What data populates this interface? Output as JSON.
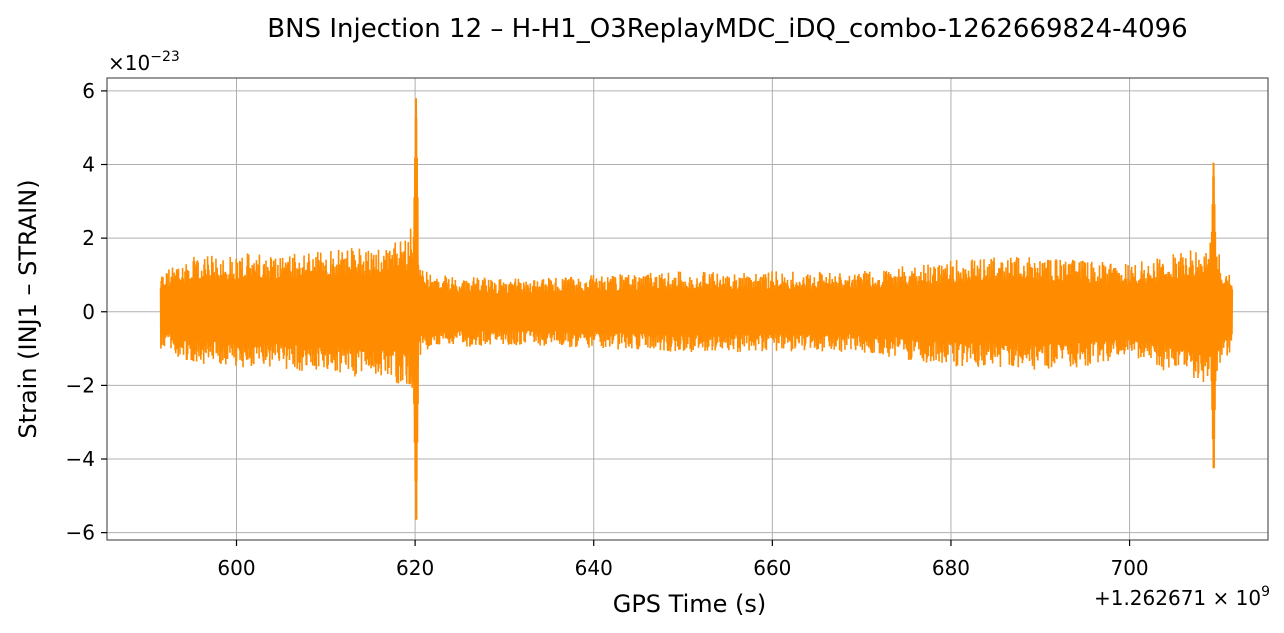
{
  "chart_data": {
    "type": "line",
    "title": "BNS Injection 12 – H-H1_O3ReplayMDC_iDQ_combo-1262669824-4096",
    "xlabel": "GPS Time (s)",
    "ylabel": "Strain (INJ1 – STRAIN)",
    "x_offset_text": "+1.262671 × 10",
    "x_offset_exp": "9",
    "y_scale_text": "×10",
    "y_scale_exp": "−23",
    "xlim": [
      585.5,
      715.5
    ],
    "ylim": [
      -6.2,
      6.35
    ],
    "x_ticks": [
      600,
      620,
      640,
      660,
      680,
      700
    ],
    "x_tick_labels": [
      "600",
      "620",
      "640",
      "660",
      "680",
      "700"
    ],
    "y_ticks": [
      -6,
      -4,
      -2,
      0,
      2,
      4,
      6
    ],
    "y_tick_labels": [
      "−6",
      "−4",
      "−2",
      "0",
      "2",
      "4",
      "6"
    ],
    "grid": true,
    "series": [
      {
        "color": "#ff8c00",
        "x_range": [
          591.5,
          711.5
        ],
        "envelope": {
          "x": [
            591.5,
            595,
            600,
            605,
            610,
            615,
            619,
            620,
            620.5,
            622,
            630,
            640,
            650,
            660,
            670,
            680,
            685,
            690,
            695,
            700,
            705,
            708,
            709.5,
            710.5,
            711.5
          ],
          "upper": [
            1.1,
            1.5,
            1.6,
            1.6,
            1.7,
            1.8,
            2.0,
            2.8,
            1.3,
            1.0,
            0.9,
            1.0,
            1.1,
            1.1,
            1.1,
            1.4,
            1.5,
            1.5,
            1.4,
            1.3,
            1.6,
            1.8,
            2.0,
            1.3,
            1.1
          ],
          "lower": [
            -1.0,
            -1.4,
            -1.5,
            -1.6,
            -1.7,
            -1.8,
            -2.0,
            -2.6,
            -1.2,
            -1.0,
            -0.9,
            -1.0,
            -1.1,
            -1.1,
            -1.1,
            -1.5,
            -1.5,
            -1.6,
            -1.5,
            -1.3,
            -1.7,
            -1.9,
            -2.1,
            -1.3,
            -1.1
          ]
        },
        "glitches": [
          {
            "x": 620.1,
            "max": 5.8,
            "min": -5.65
          },
          {
            "x": 709.4,
            "max": 4.05,
            "min": -4.25
          }
        ]
      }
    ]
  }
}
